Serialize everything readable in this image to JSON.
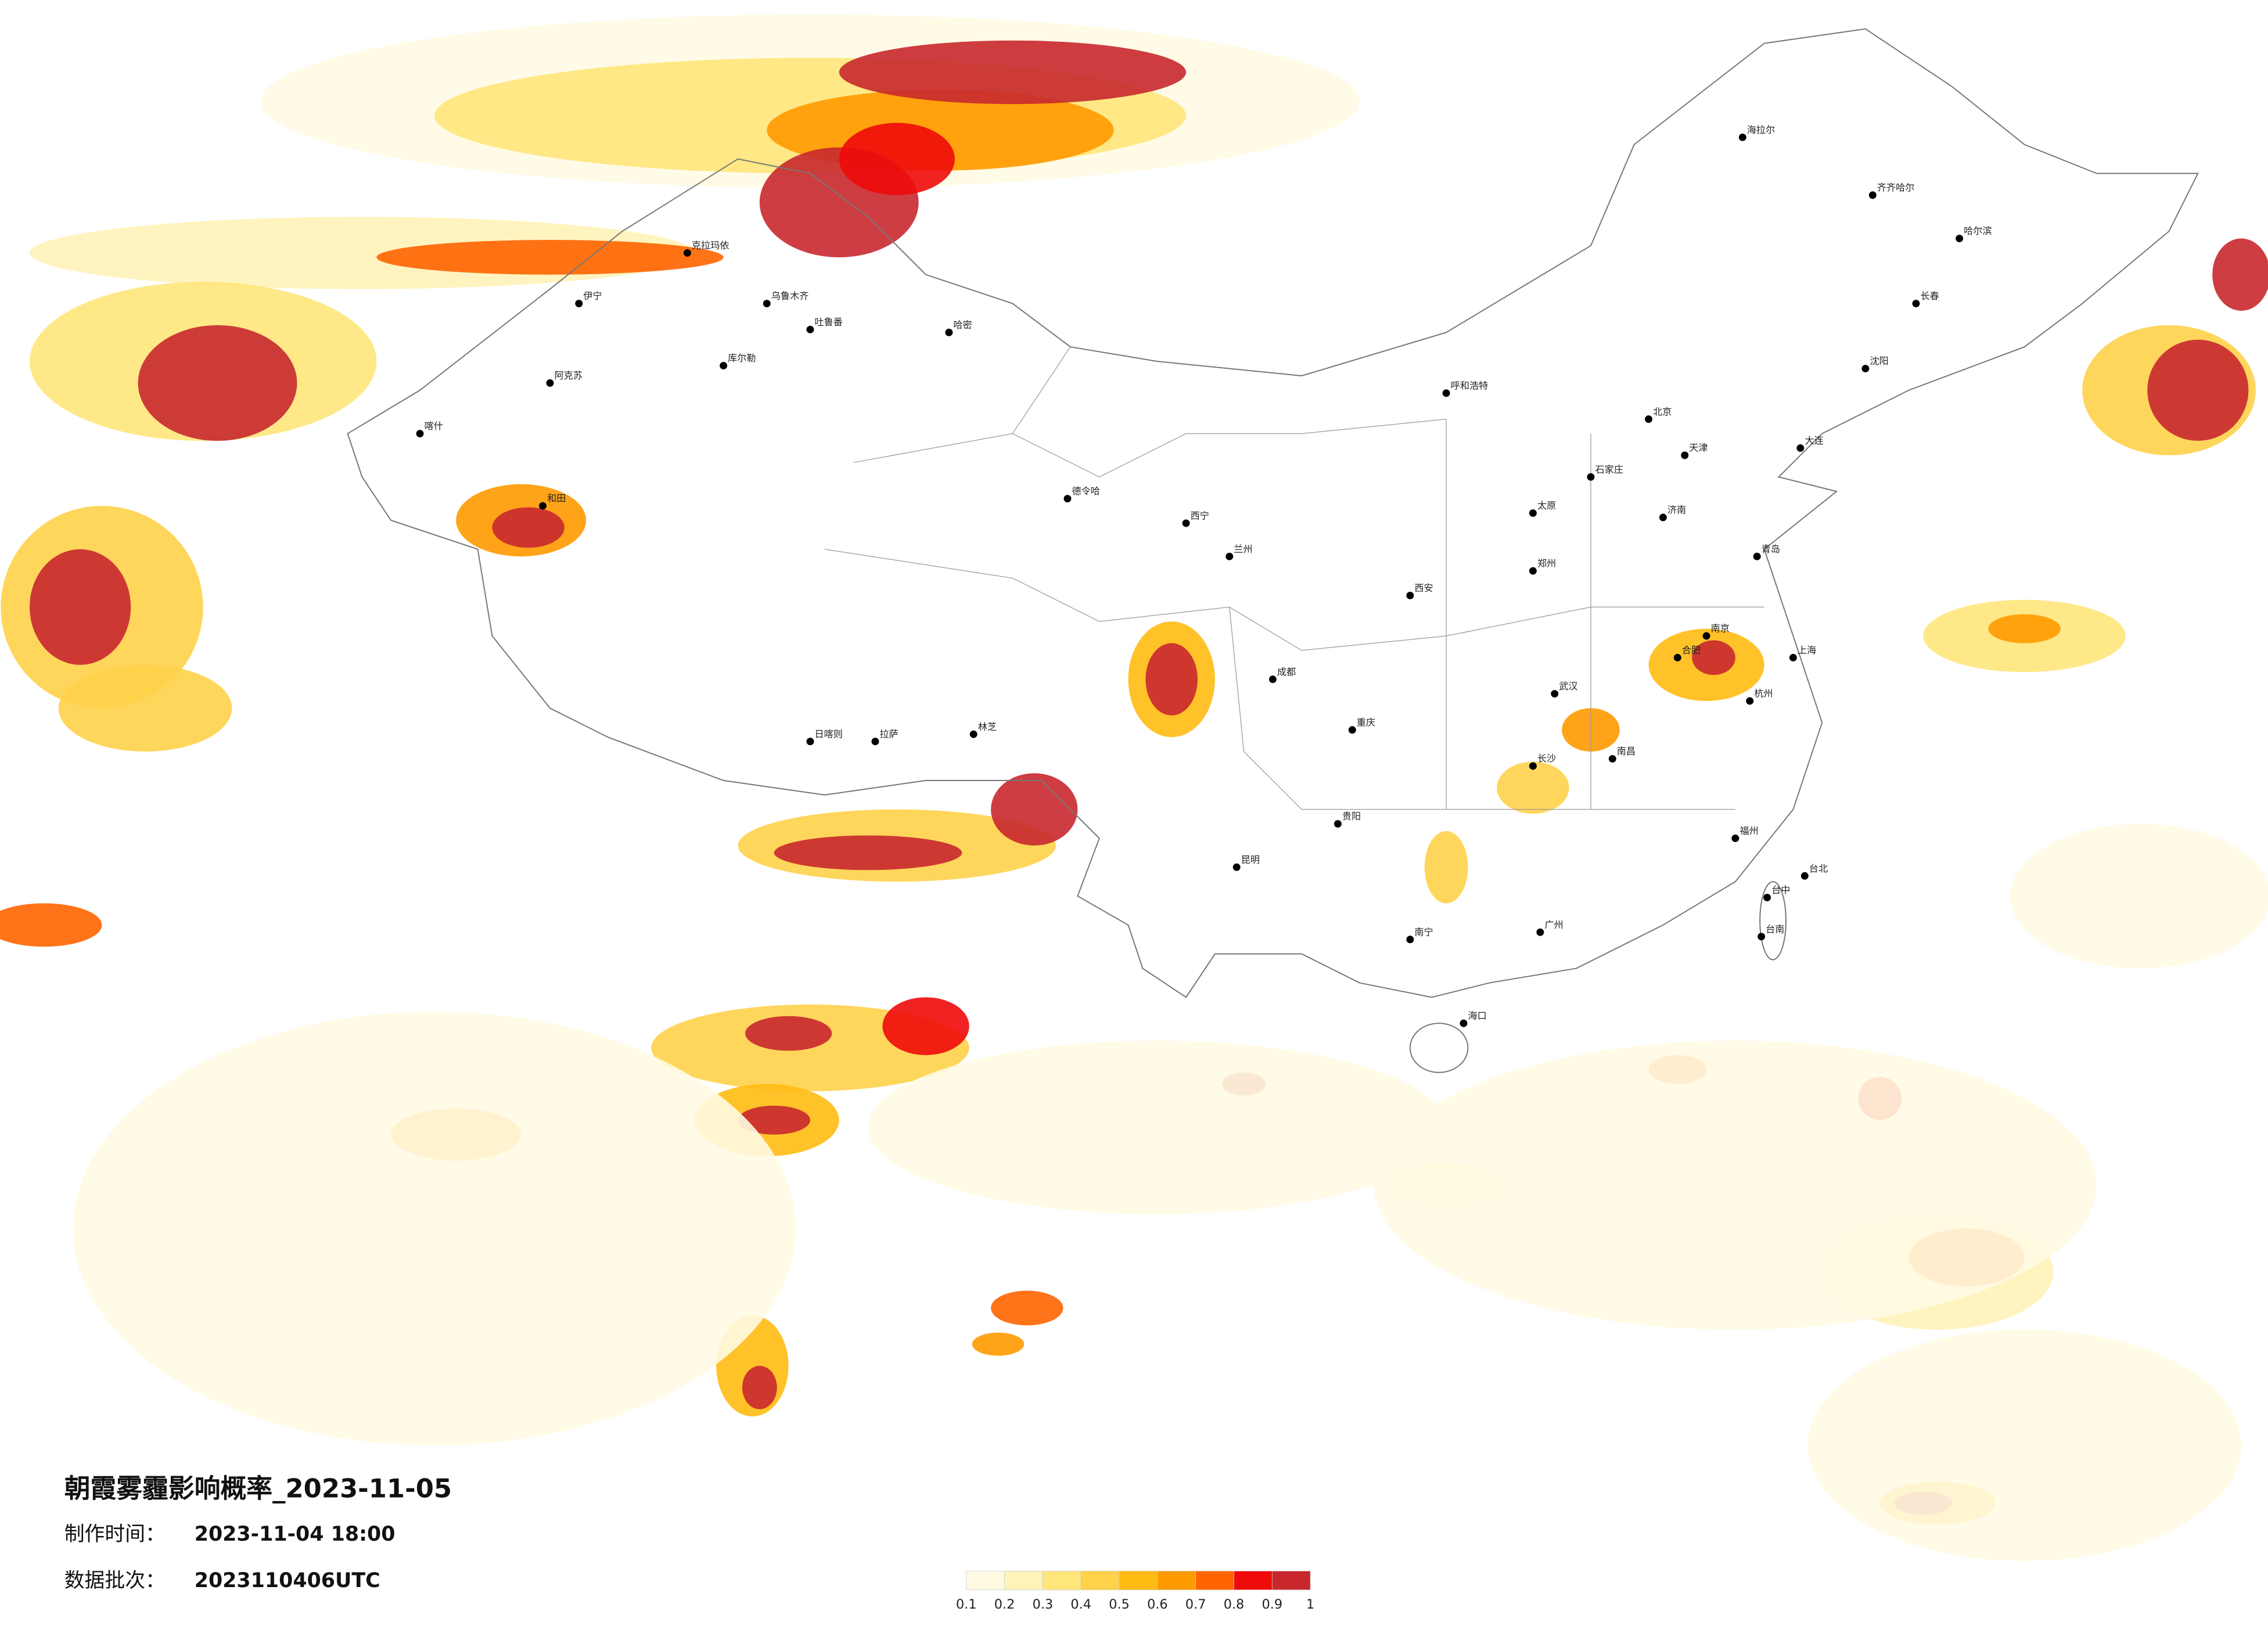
{
  "title": "朝霞雾霾影响概率_2023-11-05",
  "info": [
    {
      "label": "制作时间：",
      "value": "2023-11-04 18:00"
    },
    {
      "label": "数据批次：",
      "value": "2023110406UTC"
    }
  ],
  "legend": {
    "ticks": [
      0.1,
      0.2,
      0.3,
      0.4,
      0.5,
      0.6,
      0.7,
      0.8,
      0.9,
      1
    ],
    "colors": [
      "#fffbe3",
      "#fff3b8",
      "#ffe67a",
      "#ffd24a",
      "#ffbb12",
      "#ff9a00",
      "#ff6400",
      "#f00a0a",
      "#c8282d"
    ]
  },
  "cities": [
    "克拉玛依",
    "伊宁",
    "乌鲁木齐",
    "吐鲁番",
    "哈密",
    "库尔勒",
    "阿克苏",
    "喀什",
    "和田",
    "日喀则",
    "拉萨",
    "林芝",
    "德令哈",
    "西宁",
    "兰州",
    "呼和浩特",
    "北京",
    "天津",
    "石家庄",
    "太原",
    "济南",
    "青岛",
    "郑州",
    "西安",
    "成都",
    "重庆",
    "武汉",
    "长沙",
    "南京",
    "上海",
    "杭州",
    "合肥",
    "南昌",
    "福州",
    "广州",
    "南宁",
    "昆明",
    "贵阳",
    "海口",
    "哈尔滨",
    "长春",
    "沈阳",
    "大连",
    "海拉尔",
    "齐齐哈尔",
    "台北",
    "台中",
    "台南"
  ]
}
